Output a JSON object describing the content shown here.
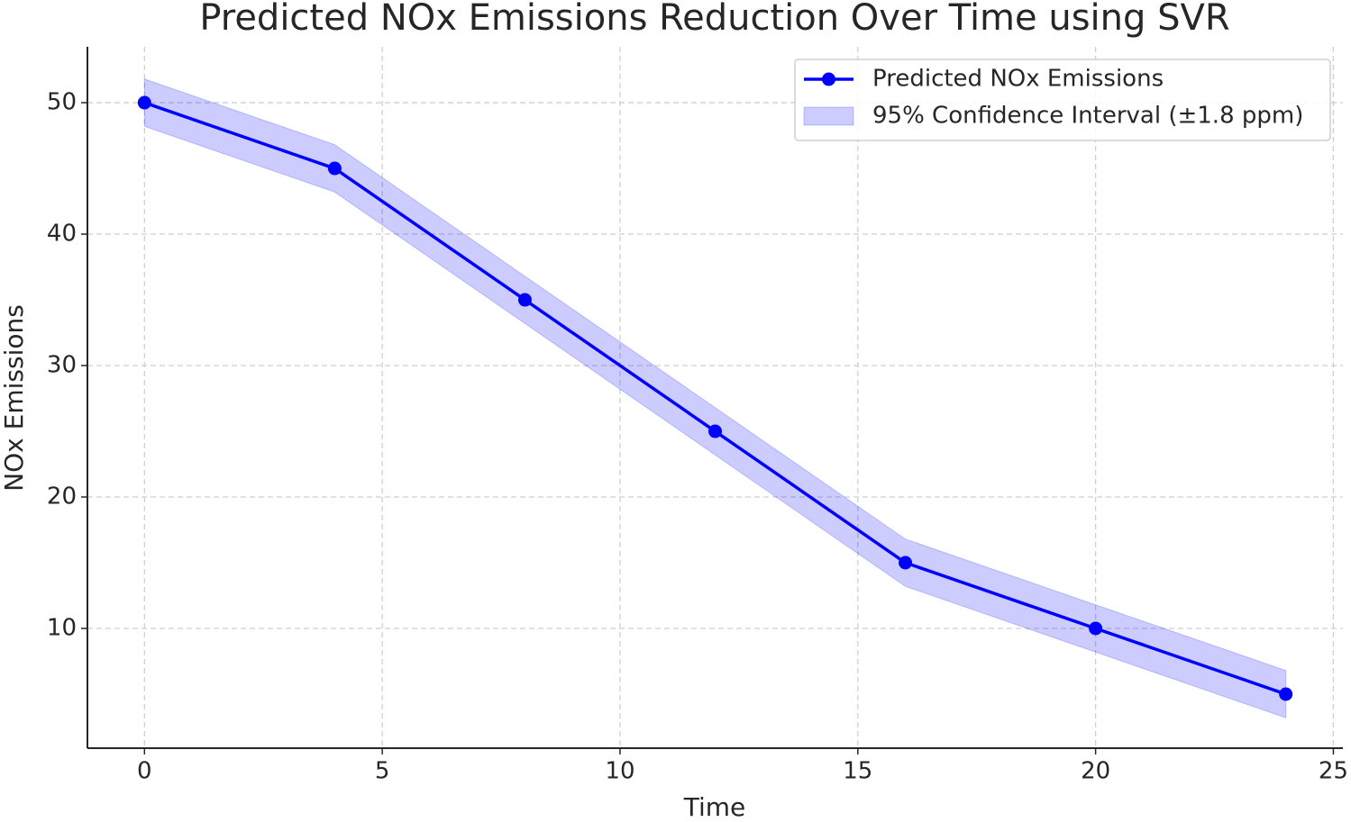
{
  "chart_data": {
    "type": "line",
    "title": "Predicted NOx Emissions Reduction Over Time using SVR",
    "x_label": "Time",
    "y_label": "NOx Emissions",
    "x": [
      0,
      4,
      8,
      12,
      16,
      20,
      24
    ],
    "series": [
      {
        "name": "Predicted NOx Emissions",
        "color": "#0000ff",
        "values": [
          50,
          45,
          35,
          25,
          15,
          10,
          5
        ]
      }
    ],
    "band": {
      "name": "95% Confidence Interval (±1.8 ppm)",
      "color": "#0000ff",
      "alpha": 0.2,
      "lower": [
        48.2,
        43.2,
        33.2,
        23.2,
        13.2,
        8.2,
        3.2
      ],
      "upper": [
        51.8,
        46.8,
        36.8,
        26.8,
        16.8,
        11.8,
        6.8
      ]
    },
    "xlim": [
      -1.2,
      25.2
    ],
    "ylim": [
      0.89,
      54.25
    ],
    "xticks": [
      0,
      5,
      10,
      15,
      20,
      25
    ],
    "yticks": [
      10,
      20,
      30,
      40,
      50
    ],
    "grid": true,
    "legend": "upper right"
  }
}
